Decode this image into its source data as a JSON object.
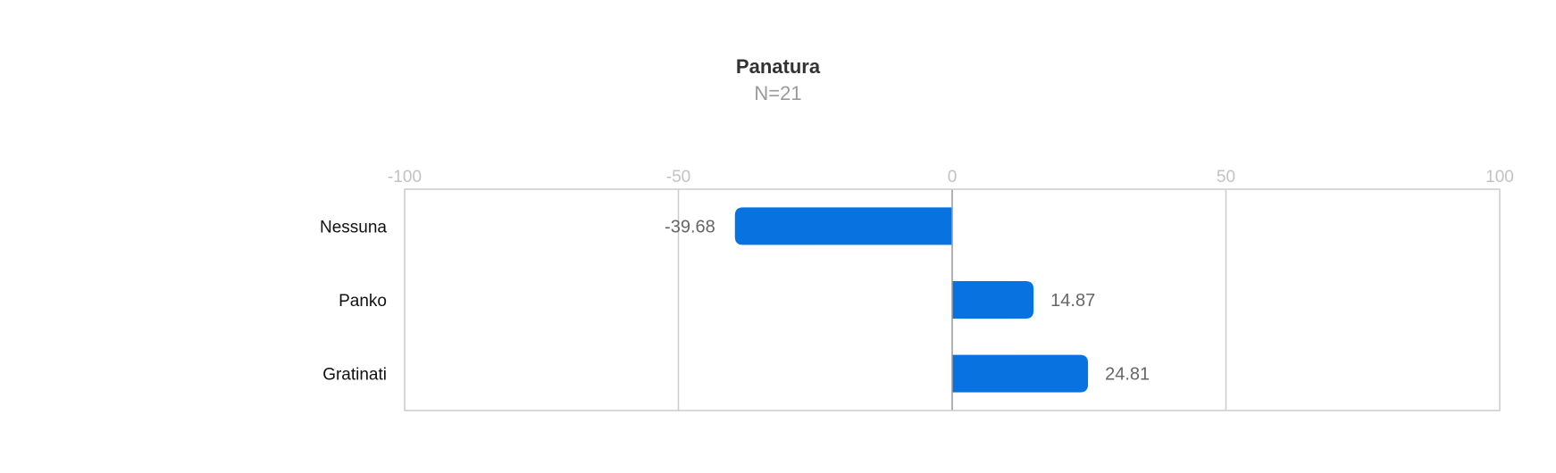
{
  "chart_data": {
    "type": "bar",
    "orientation": "horizontal",
    "title": "Panatura",
    "subtitle": "N=21",
    "categories": [
      "Nessuna",
      "Panko",
      "Gratinati"
    ],
    "values": [
      -39.68,
      14.87,
      24.81
    ],
    "value_labels": [
      "-39.68",
      "14.87",
      "24.81"
    ],
    "xlim": [
      -100,
      100
    ],
    "xticks": [
      -100,
      -50,
      0,
      50,
      100
    ],
    "xtick_labels": [
      "-100",
      "-50",
      "0",
      "50",
      "100"
    ],
    "grid": true,
    "bar_color": "#0873E0",
    "grid_color": "#CCCCCC",
    "zero_line_color": "#999999"
  }
}
